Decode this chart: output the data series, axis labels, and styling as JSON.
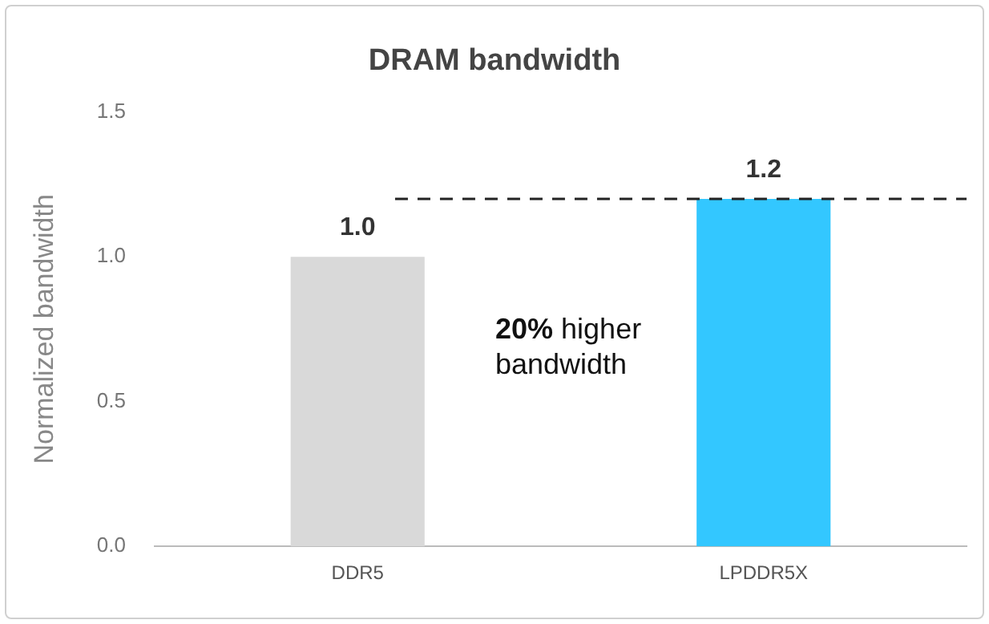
{
  "chart_data": {
    "type": "bar",
    "title": "DRAM bandwidth",
    "ylabel": "Normalized bandwidth",
    "categories": [
      "DDR5",
      "LPDDR5X"
    ],
    "values": [
      1.0,
      1.2
    ],
    "colors": [
      "#d9d9d9",
      "#33c7ff"
    ],
    "value_labels": [
      "1.0",
      "1.2"
    ],
    "ylim": [
      0,
      1.5
    ],
    "yticks": [
      {
        "value": 0,
        "label": "0.0"
      },
      {
        "value": 0.5,
        "label": "0.5"
      },
      {
        "value": 1,
        "label": "1.0"
      },
      {
        "value": 1.5,
        "label": "1.5"
      }
    ],
    "grid": false,
    "legend": false,
    "ref_lines": [
      {
        "axis": "y",
        "value": 1.2,
        "color": "#222222",
        "line_style": "dashed"
      }
    ],
    "annotations": [
      "20% higher bandwidth"
    ]
  }
}
